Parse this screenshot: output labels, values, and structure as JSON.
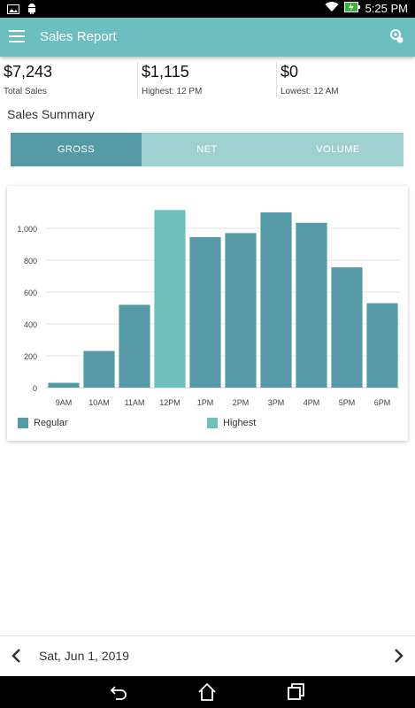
{
  "status_bar": {
    "time": "5:25 PM"
  },
  "app_bar": {
    "title": "Sales Report"
  },
  "stats": [
    {
      "value": "$7,243",
      "label": "Total Sales"
    },
    {
      "value": "$1,115",
      "label": "Highest: 12 PM"
    },
    {
      "value": "$0",
      "label": "Lowest: 12 AM"
    }
  ],
  "summary": {
    "title": "Sales Summary"
  },
  "tabs": [
    {
      "label": "GROSS",
      "active": true
    },
    {
      "label": "NET",
      "active": false
    },
    {
      "label": "VOLUME",
      "active": false
    }
  ],
  "colors": {
    "accent": "#6dbfbf",
    "regular": "#569aa6",
    "highest": "#6dc0be",
    "tab_inactive": "#9fd1d1"
  },
  "chart_data": {
    "type": "bar",
    "categories": [
      "9AM",
      "10AM",
      "11AM",
      "12PM",
      "1PM",
      "2PM",
      "3PM",
      "4PM",
      "5PM",
      "6PM"
    ],
    "series": [
      {
        "name": "Regular",
        "values": [
          30,
          230,
          520,
          null,
          945,
          970,
          1100,
          1035,
          755,
          530
        ]
      },
      {
        "name": "Highest",
        "values": [
          null,
          null,
          null,
          1115,
          null,
          null,
          null,
          null,
          null,
          null
        ]
      }
    ],
    "y_ticks": [
      "0",
      "200",
      "400",
      "600",
      "800",
      "1,000"
    ],
    "ylim": [
      0,
      1200
    ],
    "grid": true,
    "legend": "bottom"
  },
  "legend": {
    "regular": "Regular",
    "highest": "Highest"
  },
  "date_bar": {
    "date": "Sat, Jun 1, 2019"
  }
}
